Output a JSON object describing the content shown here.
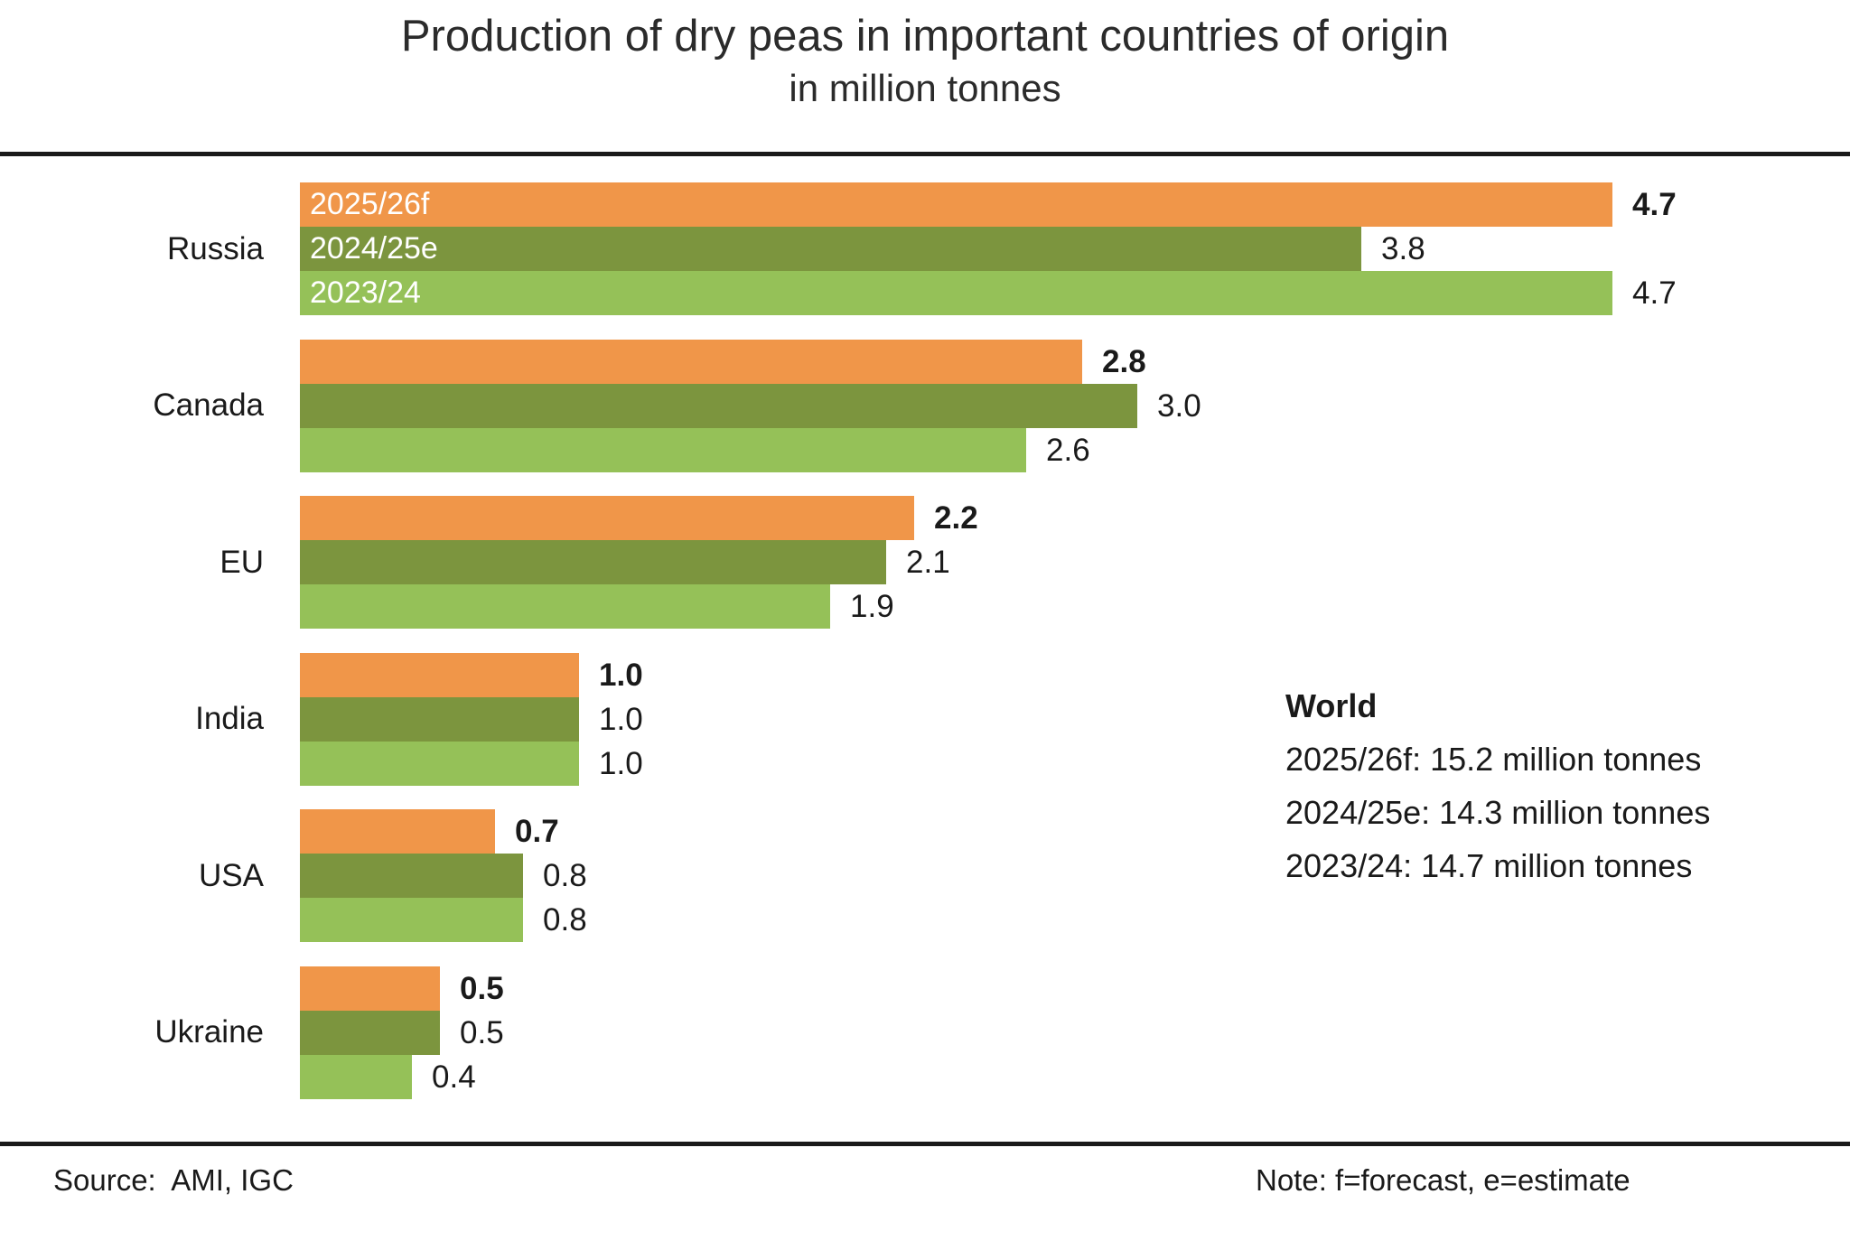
{
  "chart_data": {
    "type": "bar",
    "orientation": "horizontal",
    "title": "Production of dry peas in important countries of origin",
    "subtitle": "in million tonnes",
    "categories": [
      "Russia",
      "Canada",
      "EU",
      "India",
      "USA",
      "Ukraine"
    ],
    "series": [
      {
        "name": "2025/26f",
        "color": "#F09649",
        "values": [
          4.7,
          2.8,
          2.2,
          1.0,
          0.7,
          0.5
        ]
      },
      {
        "name": "2024/25e",
        "color": "#7C953E",
        "values": [
          3.8,
          3.0,
          2.1,
          1.0,
          0.8,
          0.5
        ]
      },
      {
        "name": "2023/24",
        "color": "#95C158",
        "values": [
          4.7,
          2.6,
          1.9,
          1.0,
          0.8,
          0.4
        ]
      }
    ],
    "series_labels_shown_on_category": "Russia",
    "value_label_decimals": 1,
    "xlim": [
      0,
      4.7
    ],
    "grid": false,
    "legend_position": "inside-first-bars",
    "annotation": {
      "heading": "World",
      "lines": [
        "2025/26f: 15.2 million tonnes",
        "2024/25e: 14.3 million tonnes",
        "2023/24: 14.7 million tonnes"
      ]
    },
    "footer": {
      "source": "Source:  AMI, IGC",
      "note": "Note: f=forecast, e=estimate"
    }
  }
}
